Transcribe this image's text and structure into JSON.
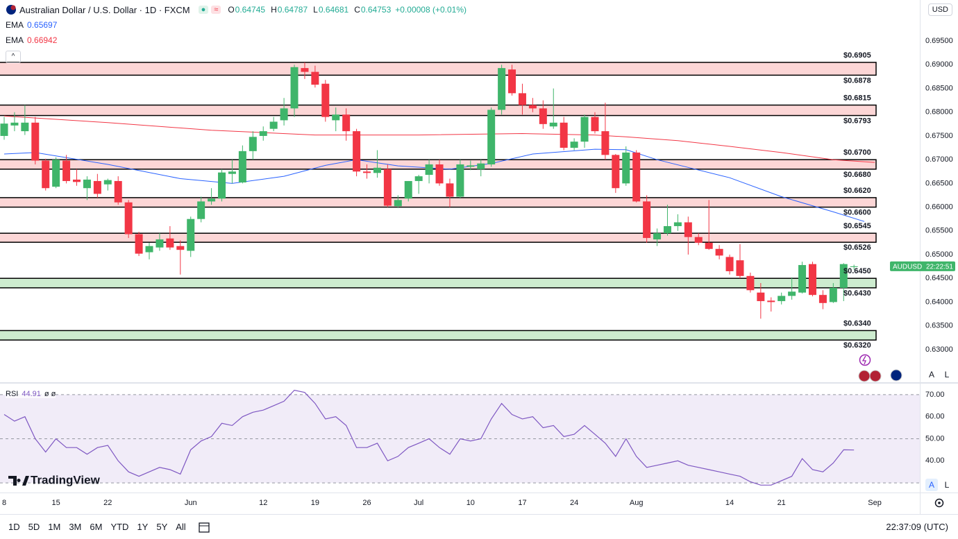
{
  "header": {
    "symbol": "Australian Dollar / U.S. Dollar · 1D · FXCM",
    "ohlc": [
      {
        "label": "O",
        "value": 0.64745
      },
      {
        "label": "H",
        "value": 0.64787
      },
      {
        "label": "L",
        "value": 0.64681
      },
      {
        "label": "C",
        "value": 0.64753
      }
    ],
    "change": "+0.00008 (+0.01%)",
    "currency": "USD"
  },
  "toolbar": {
    "ranges": [
      "1D",
      "5D",
      "1M",
      "3M",
      "6M",
      "YTD",
      "1Y",
      "5Y",
      "All"
    ],
    "clock": "22:37:09 (UTC)"
  },
  "branding": "TradingView",
  "scale_buttons": [
    "A",
    "L"
  ],
  "chart_data": [
    {
      "type": "candlestick",
      "up_color": "#3fb56a",
      "down_color": "#f23645",
      "open": [
        0.675,
        0.6772,
        0.676,
        0.6778,
        0.6698,
        0.6643,
        0.6698,
        0.6658,
        0.664,
        0.6655,
        0.6648,
        0.6655,
        0.661,
        0.6543,
        0.6505,
        0.6515,
        0.6534,
        0.6518,
        0.6508,
        0.6575,
        0.6612,
        0.6618,
        0.667,
        0.6652,
        0.6718,
        0.675,
        0.6765,
        0.6783,
        0.6808,
        0.6893,
        0.6885,
        0.686,
        0.6783,
        0.6795,
        0.676,
        0.6675,
        0.6672,
        0.668,
        0.6602,
        0.6618,
        0.6655,
        0.6668,
        0.669,
        0.665,
        0.6622,
        0.6685,
        0.668,
        0.669,
        0.6805,
        0.689,
        0.684,
        0.6815,
        0.6808,
        0.677,
        0.6778,
        0.6725,
        0.6738,
        0.679,
        0.676,
        0.671,
        0.665,
        0.6715,
        0.6612,
        0.6532,
        0.6545,
        0.656,
        0.6568,
        0.6537,
        0.6525,
        0.6512,
        0.6495,
        0.6488,
        0.6455,
        0.642,
        0.6403,
        0.6402,
        0.6413,
        0.642,
        0.648,
        0.6415,
        0.64,
        0.643,
        0.64745
      ],
      "high": [
        0.679,
        0.68,
        0.6815,
        0.679,
        0.6702,
        0.6705,
        0.671,
        0.668,
        0.6665,
        0.667,
        0.666,
        0.6665,
        0.6615,
        0.6548,
        0.6525,
        0.6545,
        0.656,
        0.653,
        0.658,
        0.6622,
        0.664,
        0.668,
        0.67,
        0.673,
        0.676,
        0.677,
        0.679,
        0.683,
        0.69,
        0.6905,
        0.6898,
        0.6868,
        0.681,
        0.6808,
        0.6765,
        0.669,
        0.672,
        0.669,
        0.6625,
        0.6655,
        0.6668,
        0.67,
        0.67,
        0.666,
        0.67,
        0.6698,
        0.67,
        0.681,
        0.69,
        0.69,
        0.686,
        0.683,
        0.6825,
        0.685,
        0.679,
        0.6745,
        0.6795,
        0.68,
        0.682,
        0.6712,
        0.6728,
        0.672,
        0.6625,
        0.6555,
        0.6605,
        0.6585,
        0.658,
        0.6545,
        0.6615,
        0.652,
        0.65,
        0.6522,
        0.6462,
        0.644,
        0.641,
        0.642,
        0.6452,
        0.6485,
        0.6485,
        0.6425,
        0.644,
        0.6482,
        0.64787
      ],
      "low": [
        0.6742,
        0.676,
        0.6752,
        0.669,
        0.6635,
        0.664,
        0.665,
        0.6645,
        0.6615,
        0.662,
        0.6635,
        0.6605,
        0.6535,
        0.6497,
        0.649,
        0.6508,
        0.651,
        0.6458,
        0.6495,
        0.6568,
        0.6605,
        0.6612,
        0.665,
        0.665,
        0.67,
        0.674,
        0.676,
        0.6772,
        0.679,
        0.687,
        0.6852,
        0.678,
        0.676,
        0.674,
        0.6665,
        0.666,
        0.6662,
        0.66,
        0.6598,
        0.6612,
        0.6628,
        0.665,
        0.6645,
        0.66,
        0.6618,
        0.6678,
        0.6665,
        0.6685,
        0.6795,
        0.6835,
        0.6795,
        0.68,
        0.6765,
        0.6765,
        0.672,
        0.672,
        0.6725,
        0.6755,
        0.67,
        0.663,
        0.6645,
        0.661,
        0.6525,
        0.6518,
        0.654,
        0.655,
        0.65,
        0.652,
        0.651,
        0.649,
        0.6458,
        0.645,
        0.642,
        0.6365,
        0.638,
        0.6395,
        0.6405,
        0.6418,
        0.6412,
        0.6385,
        0.6398,
        0.6402,
        0.64681
      ],
      "close": [
        0.6776,
        0.6778,
        0.6778,
        0.6698,
        0.664,
        0.67,
        0.6655,
        0.6653,
        0.6658,
        0.6628,
        0.6657,
        0.661,
        0.6543,
        0.6502,
        0.6518,
        0.6532,
        0.6515,
        0.651,
        0.6575,
        0.6612,
        0.6618,
        0.6673,
        0.6675,
        0.6718,
        0.6748,
        0.676,
        0.678,
        0.6808,
        0.6895,
        0.6885,
        0.6858,
        0.679,
        0.6795,
        0.676,
        0.6675,
        0.6672,
        0.6683,
        0.6603,
        0.6615,
        0.6655,
        0.6665,
        0.669,
        0.665,
        0.6622,
        0.669,
        0.6688,
        0.6692,
        0.6805,
        0.6893,
        0.684,
        0.6815,
        0.6808,
        0.6775,
        0.6778,
        0.6725,
        0.6738,
        0.679,
        0.676,
        0.671,
        0.664,
        0.6715,
        0.6612,
        0.6535,
        0.6545,
        0.656,
        0.6568,
        0.6537,
        0.6525,
        0.6512,
        0.6498,
        0.6465,
        0.6455,
        0.6425,
        0.6402,
        0.64,
        0.6413,
        0.6422,
        0.6478,
        0.6415,
        0.6398,
        0.643,
        0.648,
        0.64753
      ],
      "xlim": [
        -0.402,
        88.35
      ],
      "ylim": [
        0.62311,
        0.70364
      ],
      "xticks": [
        {
          "value": 0,
          "label": "8"
        },
        {
          "value": 5,
          "label": "15"
        },
        {
          "value": 10,
          "label": "22"
        },
        {
          "value": 18,
          "label": "Jun"
        },
        {
          "value": 25,
          "label": "12"
        },
        {
          "value": 30,
          "label": "19"
        },
        {
          "value": 35,
          "label": "26"
        },
        {
          "value": 40,
          "label": "Jul"
        },
        {
          "value": 45,
          "label": "10"
        },
        {
          "value": 50,
          "label": "17"
        },
        {
          "value": 55,
          "label": "24"
        },
        {
          "value": 61,
          "label": "Aug"
        },
        {
          "value": 70,
          "label": "14"
        },
        {
          "value": 75,
          "label": "21"
        },
        {
          "value": 84,
          "label": "Sep"
        }
      ],
      "yticks": [
        {
          "value": 0.695,
          "label": "0.69500"
        },
        {
          "value": 0.69,
          "label": "0.69000"
        },
        {
          "value": 0.685,
          "label": "0.68500"
        },
        {
          "value": 0.68,
          "label": "0.68000"
        },
        {
          "value": 0.675,
          "label": "0.67500"
        },
        {
          "value": 0.67,
          "label": "0.67000"
        },
        {
          "value": 0.665,
          "label": "0.66500"
        },
        {
          "value": 0.66,
          "label": "0.66000"
        },
        {
          "value": 0.655,
          "label": "0.65500"
        },
        {
          "value": 0.65,
          "label": "0.65000"
        },
        {
          "value": 0.645,
          "label": "0.64500"
        },
        {
          "value": 0.64,
          "label": "0.64000"
        },
        {
          "value": 0.635,
          "label": "0.63500"
        },
        {
          "value": 0.63,
          "label": "0.63000"
        }
      ],
      "ema": [
        {
          "name": "EMA",
          "last": 0.65697,
          "color": "#2962ff",
          "x": [
            0,
            3,
            10,
            17,
            22,
            27,
            31,
            34,
            38,
            43,
            47,
            51,
            57,
            60,
            63,
            70,
            75,
            80,
            83
          ],
          "values": [
            0.6712,
            0.6715,
            0.669,
            0.666,
            0.665,
            0.6665,
            0.6688,
            0.67,
            0.6687,
            0.668,
            0.6692,
            0.6712,
            0.6722,
            0.6721,
            0.67,
            0.6662,
            0.6622,
            0.659,
            0.65697
          ]
        },
        {
          "name": "EMA",
          "last": 0.66942,
          "color": "#f23645",
          "x": [
            0,
            10,
            20,
            30,
            40,
            50,
            57,
            60,
            65,
            70,
            75,
            80,
            84
          ],
          "values": [
            0.6792,
            0.6778,
            0.6762,
            0.6752,
            0.6752,
            0.6755,
            0.6752,
            0.6748,
            0.674,
            0.6728,
            0.6715,
            0.67,
            0.66942
          ]
        }
      ],
      "zones": [
        {
          "fill": "#fcd6d6",
          "top": {
            "value": 0.6905,
            "label": "$0.6905"
          },
          "bottom": {
            "value": 0.6878,
            "label": "$0.6878"
          }
        },
        {
          "fill": "#fcd6d6",
          "top": {
            "value": 0.6815,
            "label": "$0.6815"
          },
          "bottom": {
            "value": 0.6793,
            "label": "$0.6793"
          }
        },
        {
          "fill": "#fcd6d6",
          "top": {
            "value": 0.67,
            "label": "$0.6700"
          },
          "bottom": {
            "value": 0.668,
            "label": "$0.6680"
          }
        },
        {
          "fill": "#fcd6d6",
          "top": {
            "value": 0.662,
            "label": "$0.6620"
          },
          "bottom": {
            "value": 0.66,
            "label": "$0.6600"
          }
        },
        {
          "fill": "#fcd6d6",
          "top": {
            "value": 0.6545,
            "label": "$0.6545"
          },
          "bottom": {
            "value": 0.6526,
            "label": "$0.6526"
          }
        },
        {
          "fill": "#cdeccf",
          "top": {
            "value": 0.645,
            "label": "$0.6450"
          },
          "bottom": {
            "value": 0.643,
            "label": "$0.6430"
          }
        },
        {
          "fill": "#cdeccf",
          "top": {
            "value": 0.634,
            "label": "$0.6340"
          },
          "bottom": {
            "value": 0.632,
            "label": "$0.6320"
          }
        }
      ],
      "last_label": {
        "symbol": "AUDUSD",
        "countdown": "22:22:51",
        "color": "#3fb56a"
      }
    },
    {
      "type": "line",
      "name": "RSI",
      "last": 44.91,
      "extra": "ø ø",
      "color": "#7e57c2",
      "values": [
        61,
        58,
        60,
        50,
        44,
        50,
        46,
        46,
        43,
        46,
        47,
        40,
        35,
        33,
        35,
        37,
        36,
        34,
        45,
        49,
        51,
        57,
        56,
        60,
        62,
        63,
        65,
        67,
        72,
        71,
        66,
        59,
        60,
        56,
        46,
        46,
        48,
        40,
        42,
        46,
        48,
        50,
        46,
        43,
        50,
        49,
        50,
        59,
        66,
        61,
        59,
        60,
        55,
        56,
        51,
        52,
        56,
        52,
        48,
        42,
        50,
        42,
        37,
        38,
        39,
        40,
        38,
        37,
        36,
        35,
        34,
        33,
        30.5,
        29,
        29,
        31,
        33,
        41,
        36,
        35,
        39,
        45,
        44.91
      ],
      "ylim": [
        25.94,
        75
      ],
      "yticks": [
        {
          "value": 70,
          "label": "70.00"
        },
        {
          "value": 60,
          "label": "60.00"
        },
        {
          "value": 50,
          "label": "50.00"
        },
        {
          "value": 40,
          "label": "40.00"
        }
      ],
      "levels": [
        70,
        50,
        30
      ],
      "band_color": "#ede7f6"
    }
  ]
}
